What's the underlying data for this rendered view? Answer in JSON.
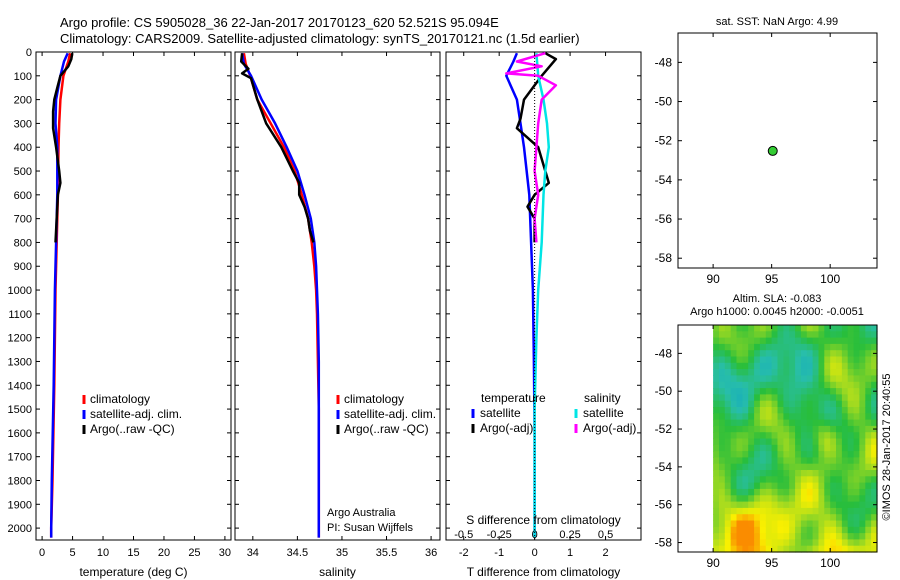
{
  "figure": {
    "title_line1": "Argo profile: CS 5905028_36 22-Jan-2017 20170123_620 52.521S 95.094E",
    "title_line2": "Climatology: CARS2009. Satellite-adjusted climatology: synTS_20170121.nc (1.5d earlier)",
    "credit": "©IMOS 28-Jan-2017 20:40:55",
    "sst_title": "sat. SST: NaN Argo: 4.99",
    "sla_title1": "Altim. SLA: -0.083",
    "sla_title2": "Argo h1000: 0.0045 h2000: -0.0051",
    "owner_line1": "Argo Australia",
    "owner_line2": "PI: Susan Wijffels"
  },
  "colors": {
    "climatology": "#ff0000",
    "satellite": "#0000ff",
    "argo": "#000000",
    "sal_satellite": "#00e5e5",
    "sal_argo": "#ff00ff",
    "marker": "#33cc33"
  },
  "legends": {
    "profile": [
      "climatology",
      "satellite-adj. clim.",
      "Argo(..raw -QC)"
    ],
    "diff_temp_header": "temperature",
    "diff_sal_header": "salinity",
    "diff_entries": [
      "satellite",
      "Argo(-adj)"
    ]
  },
  "chart_data": [
    {
      "type": "line",
      "name": "temperature-profile",
      "xlabel": "temperature (deg C)",
      "xlim": [
        -1,
        31
      ],
      "ylim": [
        2050,
        0
      ],
      "xticks": [
        0,
        5,
        10,
        15,
        20,
        25,
        30
      ],
      "yticks": [
        0,
        100,
        200,
        300,
        400,
        500,
        600,
        700,
        800,
        900,
        1000,
        1100,
        1200,
        1300,
        1400,
        1500,
        1600,
        1700,
        1800,
        1900,
        2000
      ],
      "series": [
        {
          "name": "climatology",
          "color": "#ff0000",
          "points": [
            [
              4.6,
              5
            ],
            [
              4.3,
              40
            ],
            [
              3.5,
              100
            ],
            [
              3.0,
              200
            ],
            [
              2.8,
              300
            ],
            [
              2.7,
              400
            ],
            [
              2.6,
              600
            ],
            [
              2.4,
              800
            ],
            [
              2.2,
              1000
            ],
            [
              2.0,
              1400
            ],
            [
              1.7,
              1800
            ],
            [
              1.5,
              2000
            ],
            [
              1.5,
              2040
            ]
          ]
        },
        {
          "name": "satellite-adj. clim.",
          "color": "#0000ff",
          "points": [
            [
              4.2,
              5
            ],
            [
              3.6,
              40
            ],
            [
              3.0,
              100
            ],
            [
              2.3,
              200
            ],
            [
              2.2,
              300
            ],
            [
              2.5,
              400
            ],
            [
              2.5,
              600
            ],
            [
              2.3,
              800
            ],
            [
              2.1,
              1000
            ],
            [
              1.9,
              1400
            ],
            [
              1.6,
              1800
            ],
            [
              1.5,
              2000
            ],
            [
              1.5,
              2040
            ]
          ]
        },
        {
          "name": "Argo(..raw -QC)",
          "color": "#000000",
          "points": [
            [
              4.95,
              5
            ],
            [
              4.8,
              30
            ],
            [
              4.3,
              60
            ],
            [
              3.0,
              100
            ],
            [
              2.5,
              150
            ],
            [
              2.0,
              200
            ],
            [
              1.8,
              250
            ],
            [
              1.8,
              320
            ],
            [
              2.3,
              400
            ],
            [
              2.8,
              500
            ],
            [
              3.0,
              550
            ],
            [
              2.6,
              600
            ],
            [
              2.4,
              700
            ],
            [
              2.2,
              800
            ]
          ]
        }
      ]
    },
    {
      "type": "line",
      "name": "salinity-profile",
      "xlabel": "salinity",
      "xlim": [
        33.8,
        36.1
      ],
      "ylim": [
        2050,
        0
      ],
      "xticks": [
        34,
        34.5,
        35,
        35.5,
        36
      ],
      "series": [
        {
          "name": "climatology",
          "color": "#ff0000",
          "points": [
            [
              33.9,
              5
            ],
            [
              33.92,
              50
            ],
            [
              33.97,
              100
            ],
            [
              34.05,
              200
            ],
            [
              34.2,
              300
            ],
            [
              34.35,
              400
            ],
            [
              34.47,
              500
            ],
            [
              34.55,
              600
            ],
            [
              34.62,
              700
            ],
            [
              34.66,
              800
            ],
            [
              34.69,
              900
            ],
            [
              34.71,
              1000
            ],
            [
              34.72,
              1100
            ],
            [
              34.73,
              1300
            ],
            [
              34.74,
              1500
            ],
            [
              34.74,
              1800
            ],
            [
              34.74,
              2000
            ],
            [
              34.74,
              2040
            ]
          ]
        },
        {
          "name": "satellite-adj. clim.",
          "color": "#0000ff",
          "points": [
            [
              33.88,
              5
            ],
            [
              33.9,
              50
            ],
            [
              33.98,
              100
            ],
            [
              34.1,
              200
            ],
            [
              34.25,
              300
            ],
            [
              34.38,
              400
            ],
            [
              34.5,
              500
            ],
            [
              34.58,
              600
            ],
            [
              34.65,
              700
            ],
            [
              34.69,
              800
            ],
            [
              34.71,
              900
            ],
            [
              34.72,
              1000
            ],
            [
              34.73,
              1100
            ],
            [
              34.74,
              1300
            ],
            [
              34.74,
              1500
            ],
            [
              34.74,
              1800
            ],
            [
              34.74,
              2000
            ],
            [
              34.74,
              2040
            ]
          ]
        },
        {
          "name": "Argo(..raw -QC)",
          "color": "#000000",
          "points": [
            [
              33.88,
              5
            ],
            [
              33.87,
              40
            ],
            [
              33.95,
              70
            ],
            [
              33.88,
              90
            ],
            [
              33.98,
              110
            ],
            [
              34.05,
              200
            ],
            [
              34.15,
              300
            ],
            [
              34.32,
              400
            ],
            [
              34.45,
              500
            ],
            [
              34.52,
              550
            ],
            [
              34.52,
              600
            ],
            [
              34.58,
              650
            ],
            [
              34.62,
              700
            ],
            [
              34.64,
              750
            ],
            [
              34.68,
              800
            ]
          ]
        }
      ]
    },
    {
      "type": "line",
      "name": "difference-profile",
      "xlabel": "T difference from climatology",
      "xlabel_top": "S difference from climatology",
      "xlim": [
        -2.5,
        3
      ],
      "ylim": [
        2050,
        0
      ],
      "xticks": [
        -2,
        -1,
        0,
        1,
        2
      ],
      "sticks_labels": [
        "-0.5",
        "-0.25",
        "0",
        "0.25",
        "0.5"
      ],
      "sticks_positions": [
        -2,
        -1,
        0,
        1,
        2
      ],
      "series": [
        {
          "name": "T satellite",
          "color": "#0000ff",
          "points": [
            [
              -0.5,
              5
            ],
            [
              -0.6,
              40
            ],
            [
              -0.8,
              100
            ],
            [
              -0.5,
              200
            ],
            [
              -0.4,
              300
            ],
            [
              -0.3,
              400
            ],
            [
              -0.15,
              600
            ],
            [
              -0.1,
              800
            ],
            [
              -0.05,
              1000
            ],
            [
              -0.02,
              1300
            ],
            [
              0,
              1600
            ],
            [
              0,
              2000
            ],
            [
              0,
              2040
            ]
          ]
        },
        {
          "name": "T Argo(-adj)",
          "color": "#000000",
          "points": [
            [
              0.3,
              5
            ],
            [
              0.6,
              30
            ],
            [
              0.2,
              100
            ],
            [
              -0.3,
              200
            ],
            [
              -0.4,
              280
            ],
            [
              -0.5,
              320
            ],
            [
              0.1,
              400
            ],
            [
              0.3,
              500
            ],
            [
              0.4,
              550
            ],
            [
              0.0,
              600
            ],
            [
              -0.2,
              650
            ],
            [
              0.0,
              700
            ],
            [
              0.0,
              800
            ]
          ]
        },
        {
          "name": "S satellite",
          "color": "#00e5e5",
          "points": [
            [
              0.05,
              5
            ],
            [
              0.1,
              100
            ],
            [
              0.25,
              200
            ],
            [
              0.35,
              300
            ],
            [
              0.4,
              400
            ],
            [
              0.3,
              500
            ],
            [
              0.25,
              600
            ],
            [
              0.2,
              800
            ],
            [
              0.1,
              1000
            ],
            [
              0.05,
              1200
            ],
            [
              0,
              1500
            ],
            [
              0,
              2000
            ],
            [
              0,
              2040
            ]
          ]
        },
        {
          "name": "S Argo(-adj)",
          "color": "#ff00ff",
          "points": [
            [
              0.3,
              5
            ],
            [
              -0.5,
              40
            ],
            [
              0.2,
              60
            ],
            [
              -0.8,
              90
            ],
            [
              0.1,
              100
            ],
            [
              0.6,
              140
            ],
            [
              0.2,
              200
            ],
            [
              0.1,
              300
            ],
            [
              0.05,
              400
            ],
            [
              0.0,
              500
            ],
            [
              0.1,
              600
            ],
            [
              0.0,
              700
            ],
            [
              0.05,
              800
            ]
          ]
        }
      ]
    },
    {
      "type": "scatter",
      "name": "sst-map",
      "xlim": [
        87,
        104
      ],
      "ylim": [
        -58.5,
        -46.5
      ],
      "xticks": [
        90,
        95,
        100
      ],
      "yticks": [
        -48,
        -50,
        -52,
        -54,
        -56,
        -58
      ],
      "points": [
        [
          95.094,
          -52.521
        ]
      ]
    },
    {
      "type": "heatmap",
      "name": "sla-map",
      "xlim": [
        87,
        104
      ],
      "ylim": [
        -58.5,
        -46.5
      ],
      "xticks": [
        90,
        95,
        100
      ],
      "yticks": [
        -48,
        -50,
        -52,
        -54,
        -56,
        -58
      ]
    }
  ]
}
